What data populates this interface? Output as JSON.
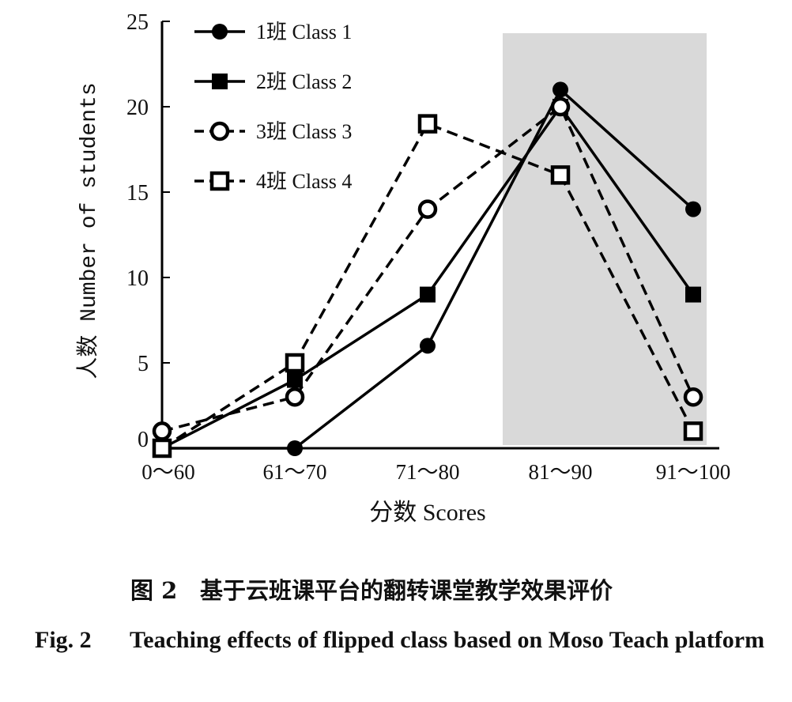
{
  "chart_data": {
    "type": "line",
    "xlabel": "分数 Scores",
    "ylabel": "人数 Number of students",
    "categories": [
      "0～60",
      "61～70",
      "71～80",
      "81～90",
      "91～100"
    ],
    "ylim": [
      0,
      25
    ],
    "yticks": [
      "0",
      "5",
      "10",
      "15",
      "20",
      "25"
    ],
    "highlight_category": "81～90",
    "highlight_color": "#d9d9d9",
    "legend_position": "top-left",
    "grid": false,
    "series": [
      {
        "name": "1班 Class 1",
        "values": [
          0,
          0,
          6,
          21,
          14
        ],
        "marker": "filled-circle",
        "line": "solid"
      },
      {
        "name": "2班 Class 2",
        "values": [
          0,
          4,
          9,
          20,
          9
        ],
        "marker": "filled-square",
        "line": "solid"
      },
      {
        "name": "3班 Class 3",
        "values": [
          1,
          3,
          14,
          20,
          3
        ],
        "marker": "open-circle",
        "line": "dashed"
      },
      {
        "name": "4班 Class 4",
        "values": [
          0,
          5,
          19,
          16,
          1
        ],
        "marker": "open-square",
        "line": "dashed"
      }
    ]
  },
  "caption": {
    "cn_number": "图 2",
    "cn_text": "基于云班课平台的翻转课堂教学效果评价",
    "en_number": "Fig. 2",
    "en_text": "Teaching effects of flipped class based on Moso Teach platform"
  }
}
